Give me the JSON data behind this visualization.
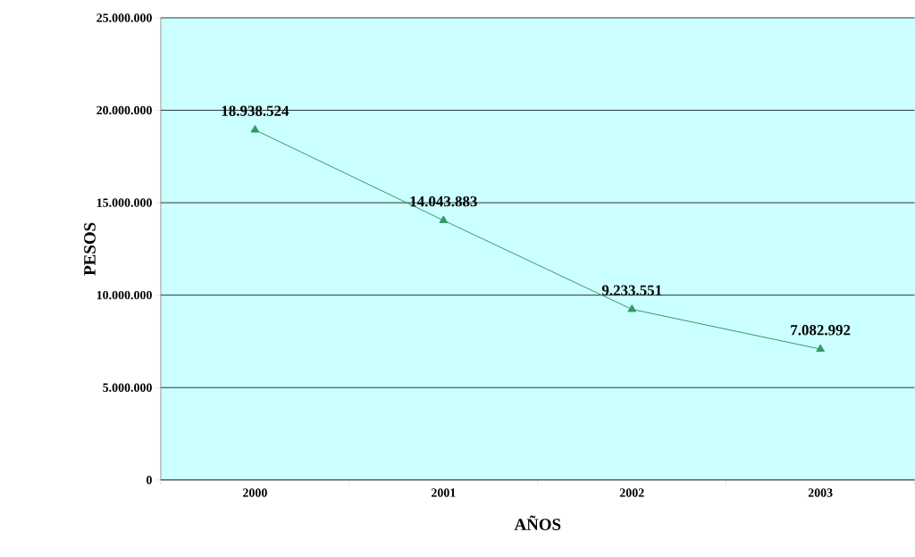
{
  "chart_data": {
    "type": "line",
    "xlabel": "AÑOS",
    "ylabel": "PESOS",
    "categories": [
      "2000",
      "2001",
      "2002",
      "2003"
    ],
    "values": [
      18938524,
      14043883,
      9233551,
      7082992
    ],
    "value_labels": [
      "18.938.524",
      "14.043.883",
      "9.233.551",
      "7.082.992"
    ],
    "color": "#339966",
    "ylim": [
      0,
      25000000
    ],
    "yticks": [
      0,
      {
        "value": 5000000,
        "label": "5.000.000"
      },
      {
        "value": 10000000,
        "label": "10.000.000"
      },
      {
        "value": 15000000,
        "label": "15.000.000"
      },
      {
        "value": 20000000,
        "label": "20.000.000"
      },
      {
        "value": 25000000,
        "label": "25.000.000"
      }
    ],
    "grid": "y",
    "marker": "triangle",
    "line_style": "solid"
  }
}
